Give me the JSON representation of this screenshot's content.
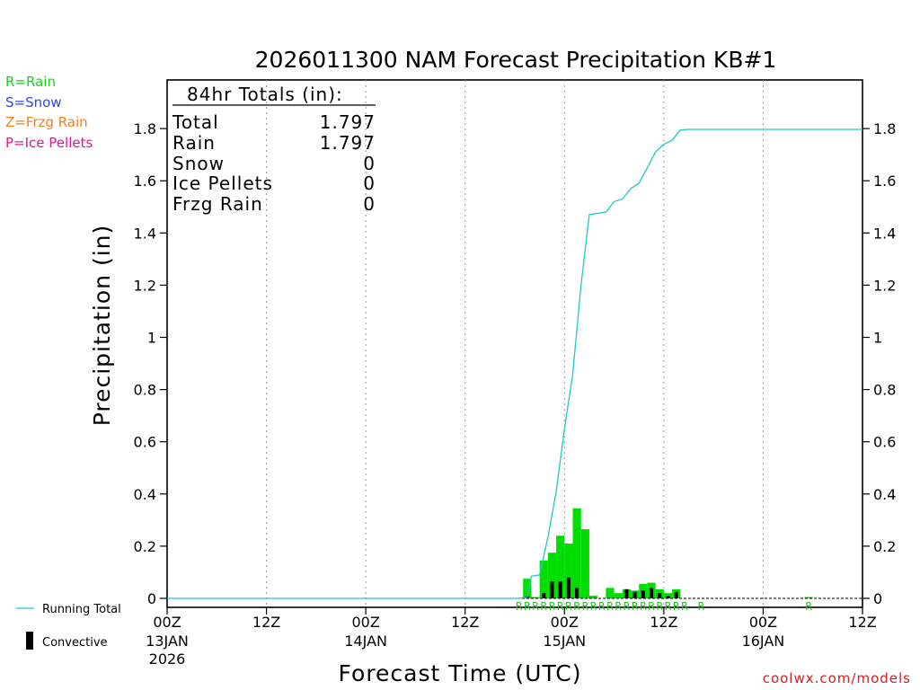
{
  "chart_data": {
    "type": "bar",
    "title": "2026011300 NAM Forecast Precipitation KB#1",
    "xlabel": "Forecast Time (UTC)",
    "ylabel": "Precipitation (in)",
    "ylim": [
      0,
      2.0
    ],
    "xlim_hours": [
      0,
      84
    ],
    "yticks": [
      "0",
      "0.2",
      "0.4",
      "0.6",
      "0.8",
      "1",
      "1.2",
      "1.4",
      "1.6",
      "1.8"
    ],
    "xticks": [
      {
        "hour": 0,
        "label": "00Z",
        "date": "13JAN",
        "year": "2026"
      },
      {
        "hour": 12,
        "label": "12Z",
        "date": "",
        "year": ""
      },
      {
        "hour": 24,
        "label": "00Z",
        "date": "14JAN",
        "year": ""
      },
      {
        "hour": 36,
        "label": "12Z",
        "date": "",
        "year": ""
      },
      {
        "hour": 48,
        "label": "00Z",
        "date": "15JAN",
        "year": ""
      },
      {
        "hour": 60,
        "label": "12Z",
        "date": "",
        "year": ""
      },
      {
        "hour": 72,
        "label": "00Z",
        "date": "16JAN",
        "year": ""
      },
      {
        "hour": 84,
        "label": "12Z",
        "date": "",
        "year": ""
      }
    ],
    "rain_bars": [
      {
        "hour": 44,
        "value": 0.075
      },
      {
        "hour": 45,
        "value": 0.005
      },
      {
        "hour": 46,
        "value": 0.145
      },
      {
        "hour": 47,
        "value": 0.175
      },
      {
        "hour": 48,
        "value": 0.24
      },
      {
        "hour": 49,
        "value": 0.21
      },
      {
        "hour": 50,
        "value": 0.345
      },
      {
        "hour": 51,
        "value": 0.265
      },
      {
        "hour": 52,
        "value": 0.01
      },
      {
        "hour": 54,
        "value": 0.04
      },
      {
        "hour": 55,
        "value": 0.02
      },
      {
        "hour": 56,
        "value": 0.035
      },
      {
        "hour": 57,
        "value": 0.03
      },
      {
        "hour": 58,
        "value": 0.055
      },
      {
        "hour": 59,
        "value": 0.06
      },
      {
        "hour": 60,
        "value": 0.035
      },
      {
        "hour": 61,
        "value": 0.02
      },
      {
        "hour": 62,
        "value": 0.035
      },
      {
        "hour": 78,
        "value": 0.005
      }
    ],
    "convective_bars": [
      {
        "hour": 44,
        "value": 0.01
      },
      {
        "hour": 46,
        "value": 0.02
      },
      {
        "hour": 47,
        "value": 0.065
      },
      {
        "hour": 48,
        "value": 0.065
      },
      {
        "hour": 49,
        "value": 0.08
      },
      {
        "hour": 50,
        "value": 0.04
      },
      {
        "hour": 56,
        "value": 0.035
      },
      {
        "hour": 57,
        "value": 0.025
      },
      {
        "hour": 58,
        "value": 0.03
      },
      {
        "hour": 59,
        "value": 0.04
      },
      {
        "hour": 60,
        "value": 0.02
      },
      {
        "hour": 61,
        "value": 0.01
      },
      {
        "hour": 62,
        "value": 0.025
      }
    ],
    "running_total": {
      "name": "Running Total",
      "x": [
        0,
        42.5,
        43.5,
        44,
        45,
        46,
        47,
        48,
        49,
        50,
        51,
        52,
        53,
        54,
        55,
        56,
        57,
        58,
        59,
        60,
        61,
        62,
        63,
        72,
        78,
        84
      ],
      "y": [
        0,
        0,
        0.005,
        0.085,
        0.09,
        0.235,
        0.41,
        0.65,
        0.86,
        1.2,
        1.47,
        1.475,
        1.48,
        1.52,
        1.53,
        1.57,
        1.59,
        1.65,
        1.71,
        1.74,
        1.755,
        1.795,
        1.797,
        1.797,
        1.797,
        1.797
      ]
    },
    "precip_type_markers": {
      "letter": "R",
      "hours": [
        43,
        44,
        45,
        46,
        47,
        48,
        49,
        50,
        51,
        52,
        53,
        54,
        55,
        56,
        57,
        58,
        59,
        60,
        61,
        62,
        63,
        65,
        78
      ]
    }
  },
  "totals": {
    "heading": "84hr Totals (in):",
    "rows": [
      {
        "label": "Total",
        "value": "1.797"
      },
      {
        "label": "Rain",
        "value": "1.797"
      },
      {
        "label": "Snow",
        "value": "0"
      },
      {
        "label": "Ice Pellets",
        "value": "0"
      },
      {
        "label": "Frzg Rain",
        "value": "0"
      }
    ]
  },
  "type_legend": [
    {
      "text": "R=Rain",
      "color": "#22cc22"
    },
    {
      "text": "S=Snow",
      "color": "#3344ee"
    },
    {
      "text": "Z=Frzg Rain",
      "color": "#f08020"
    },
    {
      "text": "P=Ice Pellets",
      "color": "#e01890"
    }
  ],
  "bottom_legend": {
    "running_total": "Running Total",
    "convective": "Convective"
  },
  "colors": {
    "rain": "#00dd00",
    "convective": "#000000",
    "running_total": "#20c8c8",
    "marker": "#33bb33"
  },
  "credit": "coolwx.com/models"
}
